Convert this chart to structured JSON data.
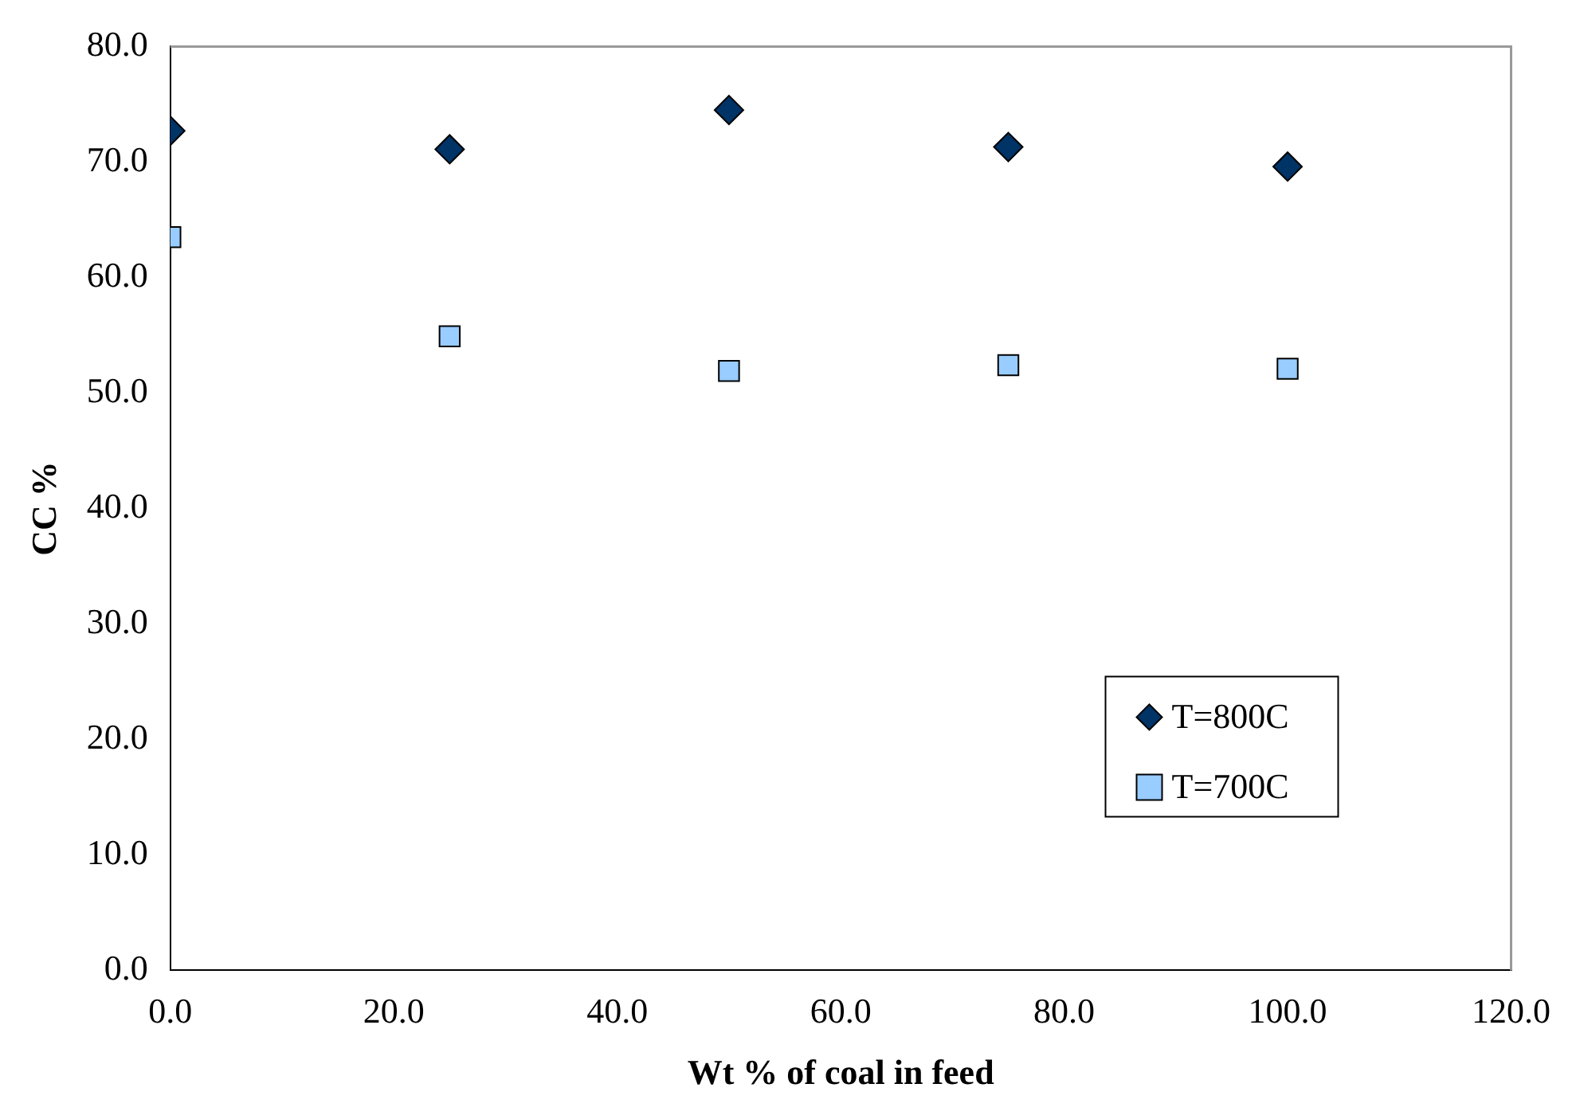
{
  "chart_data": {
    "type": "scatter",
    "xlabel": "Wt % of coal in feed",
    "ylabel": "CC %",
    "x": [
      0,
      25,
      50,
      75,
      100
    ],
    "xlim": [
      0,
      120
    ],
    "xticks": [
      {
        "value": 0,
        "label": "0.0"
      },
      {
        "value": 20,
        "label": "20.0"
      },
      {
        "value": 40,
        "label": "40.0"
      },
      {
        "value": 60,
        "label": "60.0"
      },
      {
        "value": 80,
        "label": "80.0"
      },
      {
        "value": 100,
        "label": "100.0"
      },
      {
        "value": 120,
        "label": "120.0"
      }
    ],
    "ylim": [
      0,
      80
    ],
    "yticks": [
      {
        "value": 0,
        "label": "0.0"
      },
      {
        "value": 10,
        "label": "10.0"
      },
      {
        "value": 20,
        "label": "20.0"
      },
      {
        "value": 30,
        "label": "30.0"
      },
      {
        "value": 40,
        "label": "40.0"
      },
      {
        "value": 50,
        "label": "50.0"
      },
      {
        "value": 60,
        "label": "60.0"
      },
      {
        "value": 70,
        "label": "70.0"
      },
      {
        "value": 80,
        "label": "80.0"
      }
    ],
    "grid": false,
    "legend": "bottom right",
    "series": [
      {
        "name": "T=800C",
        "color": "#003366",
        "marker": "diamond",
        "values": [
          72.7,
          71.1,
          74.5,
          71.3,
          69.6
        ]
      },
      {
        "name": "T=700C",
        "color": "#99ccff",
        "marker": "square",
        "values": [
          63.5,
          54.9,
          51.9,
          52.4,
          52.1
        ]
      }
    ]
  }
}
